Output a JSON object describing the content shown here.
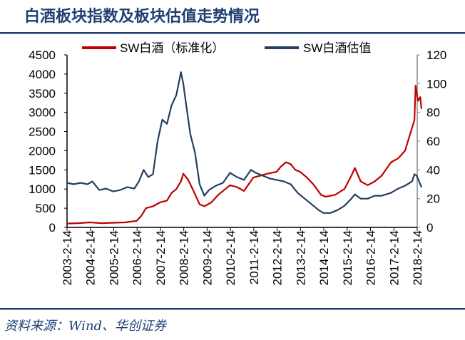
{
  "title": "白酒板块指数及板块估值走势情况",
  "source": "资料来源：Wind、华创证券",
  "chart_data": {
    "type": "line",
    "title": "白酒板块指数及板块估值走势情况",
    "xlabel": "",
    "ylabel": "",
    "y2label": "",
    "x_ticks": [
      "2003-2-14",
      "2004-2-14",
      "2005-2-14",
      "2006-2-14",
      "2007-2-14",
      "2008-2-14",
      "2009-2-14",
      "2010-2-14",
      "2011-2-14",
      "2012-2-14",
      "2013-2-14",
      "2014-2-14",
      "2015-2-14",
      "2016-2-14",
      "2017-2-14",
      "2018-2-14"
    ],
    "xlim": [
      2003.12,
      2018.12
    ],
    "ylim": [
      0,
      4500
    ],
    "y_ticks": [
      0,
      500,
      1000,
      1500,
      2000,
      2500,
      3000,
      3500,
      4000,
      4500
    ],
    "y2lim": [
      0,
      120
    ],
    "y2_ticks": [
      0,
      20,
      40,
      60,
      80,
      100,
      120
    ],
    "legend": "top",
    "grid": false,
    "series": [
      {
        "name": "SW白酒（标准化）",
        "axis": "left",
        "color": "#c00000",
        "x": [
          2003.12,
          2003.6,
          2004.1,
          2004.6,
          2005.1,
          2005.6,
          2006.1,
          2006.3,
          2006.5,
          2006.8,
          2007.1,
          2007.4,
          2007.6,
          2007.8,
          2008.0,
          2008.1,
          2008.3,
          2008.5,
          2008.8,
          2009.0,
          2009.3,
          2009.6,
          2010.1,
          2010.4,
          2010.7,
          2011.1,
          2011.4,
          2011.7,
          2012.1,
          2012.3,
          2012.5,
          2012.7,
          2012.9,
          2013.1,
          2013.4,
          2013.7,
          2014.0,
          2014.2,
          2014.6,
          2015.0,
          2015.3,
          2015.45,
          2015.7,
          2016.0,
          2016.3,
          2016.6,
          2017.0,
          2017.3,
          2017.6,
          2017.8,
          2018.0,
          2018.05,
          2018.15,
          2018.25,
          2018.3
        ],
        "y": [
          100,
          110,
          130,
          110,
          120,
          130,
          170,
          300,
          500,
          550,
          650,
          700,
          900,
          1000,
          1200,
          1400,
          1250,
          1000,
          600,
          550,
          650,
          850,
          1100,
          1050,
          950,
          1300,
          1350,
          1400,
          1450,
          1600,
          1700,
          1650,
          1500,
          1450,
          1300,
          1100,
          850,
          800,
          850,
          1000,
          1350,
          1550,
          1200,
          1100,
          1200,
          1350,
          1700,
          1800,
          2000,
          2400,
          2800,
          3700,
          3300,
          3400,
          3100
        ]
      },
      {
        "name": "SW白酒估值",
        "axis": "right",
        "color": "#243f60",
        "x": [
          2003.12,
          2003.4,
          2003.7,
          2004.0,
          2004.2,
          2004.5,
          2004.8,
          2005.1,
          2005.4,
          2005.7,
          2006.0,
          2006.2,
          2006.4,
          2006.6,
          2006.8,
          2007.0,
          2007.2,
          2007.4,
          2007.6,
          2007.8,
          2008.0,
          2008.1,
          2008.2,
          2008.4,
          2008.6,
          2008.8,
          2009.0,
          2009.2,
          2009.5,
          2009.8,
          2010.1,
          2010.4,
          2010.7,
          2011.0,
          2011.2,
          2011.5,
          2011.8,
          2012.1,
          2012.4,
          2012.7,
          2013.0,
          2013.3,
          2013.6,
          2013.9,
          2014.1,
          2014.4,
          2014.7,
          2015.0,
          2015.3,
          2015.45,
          2015.7,
          2016.0,
          2016.3,
          2016.6,
          2017.0,
          2017.3,
          2017.6,
          2017.9,
          2018.0,
          2018.1,
          2018.2,
          2018.3
        ],
        "y": [
          31,
          30,
          31,
          30,
          32,
          26,
          27,
          25,
          26,
          28,
          27,
          32,
          40,
          35,
          37,
          60,
          75,
          72,
          85,
          92,
          108,
          100,
          88,
          65,
          52,
          30,
          22,
          26,
          29,
          31,
          38,
          35,
          33,
          40,
          38,
          36,
          34,
          33,
          32,
          30,
          24,
          20,
          16,
          12,
          10,
          10,
          12,
          15,
          20,
          23,
          20,
          20,
          22,
          22,
          24,
          27,
          29,
          32,
          37,
          36,
          32,
          28
        ]
      }
    ]
  }
}
